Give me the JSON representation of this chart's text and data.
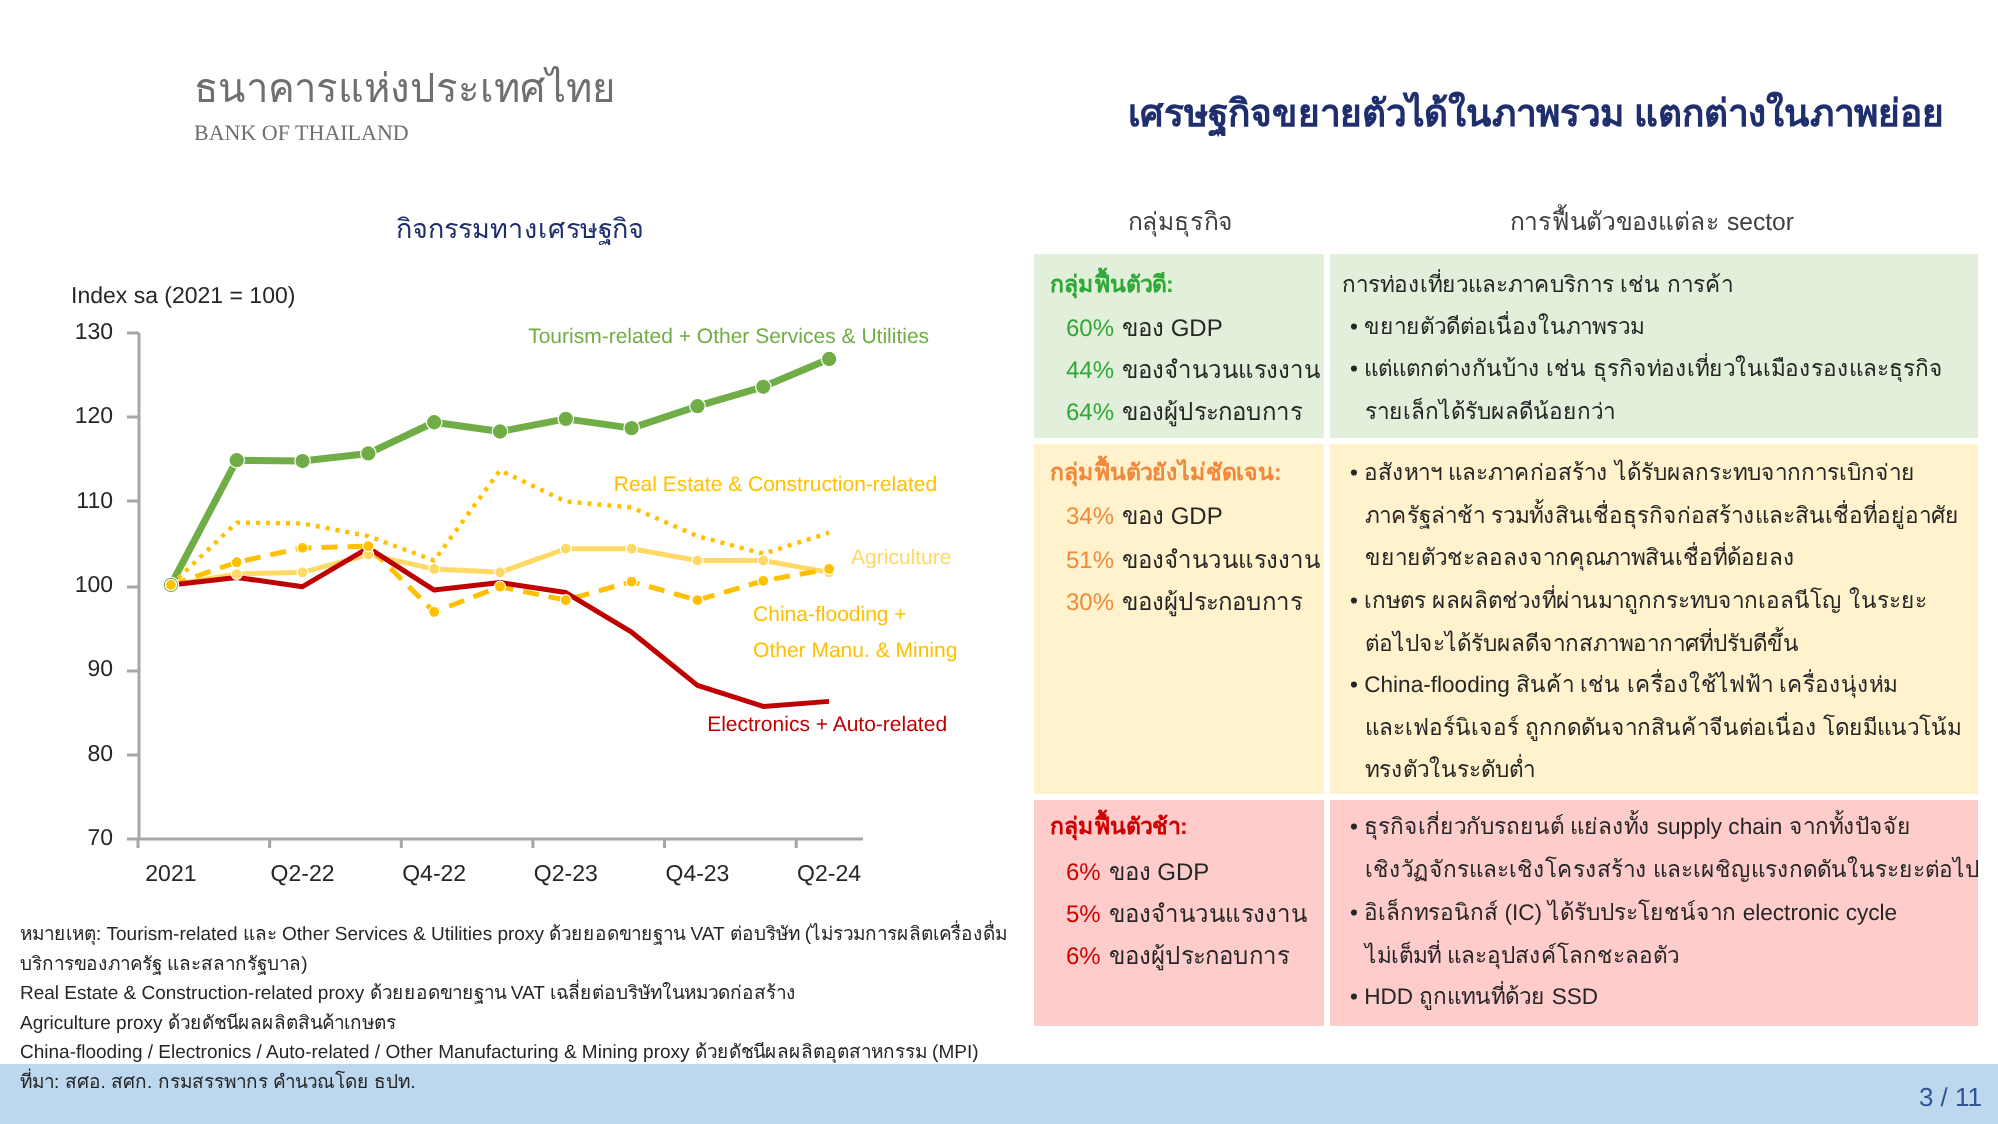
{
  "chart_data": [
    {
      "type": "line",
      "title": "กิจกรรมทางเศรษฐกิจ",
      "ylabel": "Index sa (2021 = 100)",
      "categories": [
        "2021",
        null,
        "Q2-22",
        null,
        "Q4-22",
        null,
        "Q2-23",
        null,
        "Q4-23",
        null,
        "Q2-24"
      ],
      "ylim": [
        70,
        130
      ],
      "yticks": [
        70,
        80,
        90,
        100,
        110,
        120,
        130
      ],
      "series": [
        {
          "name": "Tourism-related + Other Services & Utilities",
          "color": "#70ad47",
          "line_style": "solid",
          "marker": "circle",
          "values": [
            100,
            114.8,
            114.7,
            115.6,
            119.3,
            118.2,
            119.7,
            118.6,
            121.2,
            123.5,
            126.8
          ]
        },
        {
          "name": "Real Estate & Construction-related",
          "color": "#ffc000",
          "line_style": "dotted",
          "values": [
            100,
            107.4,
            107.3,
            105.8,
            102.9,
            113.6,
            109.9,
            109.2,
            105.8,
            103.7,
            106.2
          ]
        },
        {
          "name": "Agriculture",
          "color": "#ffd966",
          "line_style": "solid",
          "marker": "circle",
          "values": [
            100,
            101.3,
            101.5,
            103.6,
            101.9,
            101.5,
            104.3,
            104.3,
            102.9,
            102.9,
            101.5
          ]
        },
        {
          "name": "China-flooding +\nOther Manu. & Mining",
          "color": "#ffc000",
          "line_style": "dashed",
          "marker": "circle",
          "values": [
            100,
            102.7,
            104.4,
            104.6,
            96.8,
            99.8,
            98.2,
            100.4,
            98.2,
            100.5,
            101.9
          ]
        },
        {
          "name": "Electronics + Auto-related",
          "color": "#c00000",
          "line_style": "solid",
          "values": [
            100,
            100.9,
            99.8,
            104.4,
            99.4,
            100.3,
            99.1,
            94.4,
            88.1,
            85.6,
            86.2
          ]
        }
      ],
      "annotations": [
        "หมายเหตุ: Tourism-related และ Other Services & Utilities proxy ด้วยยอดขายฐาน VAT ต่อบริษัท (ไม่รวมการผลิตเครื่องดื่ม\nบริการของภาครัฐ และสลากรัฐบาล)",
        "Real Estate & Construction-related proxy ด้วยยอดขายฐาน VAT เฉลี่ยต่อบริษัทในหมวดก่อสร้าง",
        "Agriculture proxy ด้วยดัชนีผลผลิตสินค้าเกษตร",
        "China-flooding / Electronics / Auto-related / Other Manufacturing & Mining proxy ด้วยดัชนีผลผลิตอุตสาหกรรม (MPI)",
        "ที่มา: สศอ. สศก. กรมสรรพากร คำนวณโดย ธปท."
      ]
    },
    {
      "type": "other",
      "title": "เศรษฐกิจขยายตัวได้ในภาพรวม แตกต่างในภาพย่อย",
      "annotations": [
        "ธนาคารแห่งประเทศไทย",
        "BANK OF THAILAND",
        "กลุ่มธุรกิจ",
        "การฟื้นตัวของแต่ละ sector",
        "กลุ่มฟื้นตัวดี:",
        "60%",
        "ของ GDP",
        "44%",
        "ของจำนวนแรงงาน",
        "64%",
        "ของผู้ประกอบการ",
        "การท่องเที่ยวและภาคบริการ เช่น การค้า",
        "• ขยายตัวดีต่อเนื่องในภาพรวม",
        "• แต่แตกต่างกันบ้าง เช่น ธุรกิจท่องเที่ยวในเมืองรองและธุรกิจ\nรายเล็กได้รับผลดีน้อยกว่า",
        "กลุ่มฟื้นตัวยังไม่ชัดเจน:",
        "34%",
        "ของ GDP",
        "51%",
        "ของจำนวนแรงงาน",
        "30%",
        "ของผู้ประกอบการ",
        "• อสังหาฯ และภาคก่อสร้าง ได้รับผลกระทบจากการเบิกจ่าย\nภาครัฐล่าช้า รวมทั้งสินเชื่อธุรกิจก่อสร้างและสินเชื่อที่อยู่อาศัย\nขยายตัวชะลอลงจากคุณภาพสินเชื่อที่ด้อยลง",
        "• เกษตร ผลผลิตช่วงที่ผ่านมาถูกกระทบจากเอลนีโญ ในระยะ\nต่อไปจะได้รับผลดีจากสภาพอากาศที่ปรับดีขึ้น",
        "• China-flooding สินค้า เช่น เครื่องใช้ไฟฟ้า เครื่องนุ่งห่ม\nและเฟอร์นิเจอร์ ถูกกดดันจากสินค้าจีนต่อเนื่อง โดยมีแนวโน้ม\nทรงตัวในระดับต่ำ",
        "กลุ่มฟื้นตัวช้า:",
        "6%",
        "ของ GDP",
        "5%",
        "ของจำนวนแรงงาน",
        "6%",
        "ของผู้ประกอบการ",
        "• ธุรกิจเกี่ยวกับรถยนต์ แย่ลงทั้ง supply chain จากทั้งปัจจัย\nเชิงวัฏจักรและเชิงโครงสร้าง และเผชิญแรงกดดันในระยะต่อไป",
        "• อิเล็กทรอนิกส์ (IC) ได้รับประโยชน์จาก electronic cycle\nไม่เต็มที่ และอุปสงค์โลกชะลอตัว",
        "• HDD ถูกแทนที่ด้วย SSD",
        "3 / 11"
      ]
    }
  ]
}
